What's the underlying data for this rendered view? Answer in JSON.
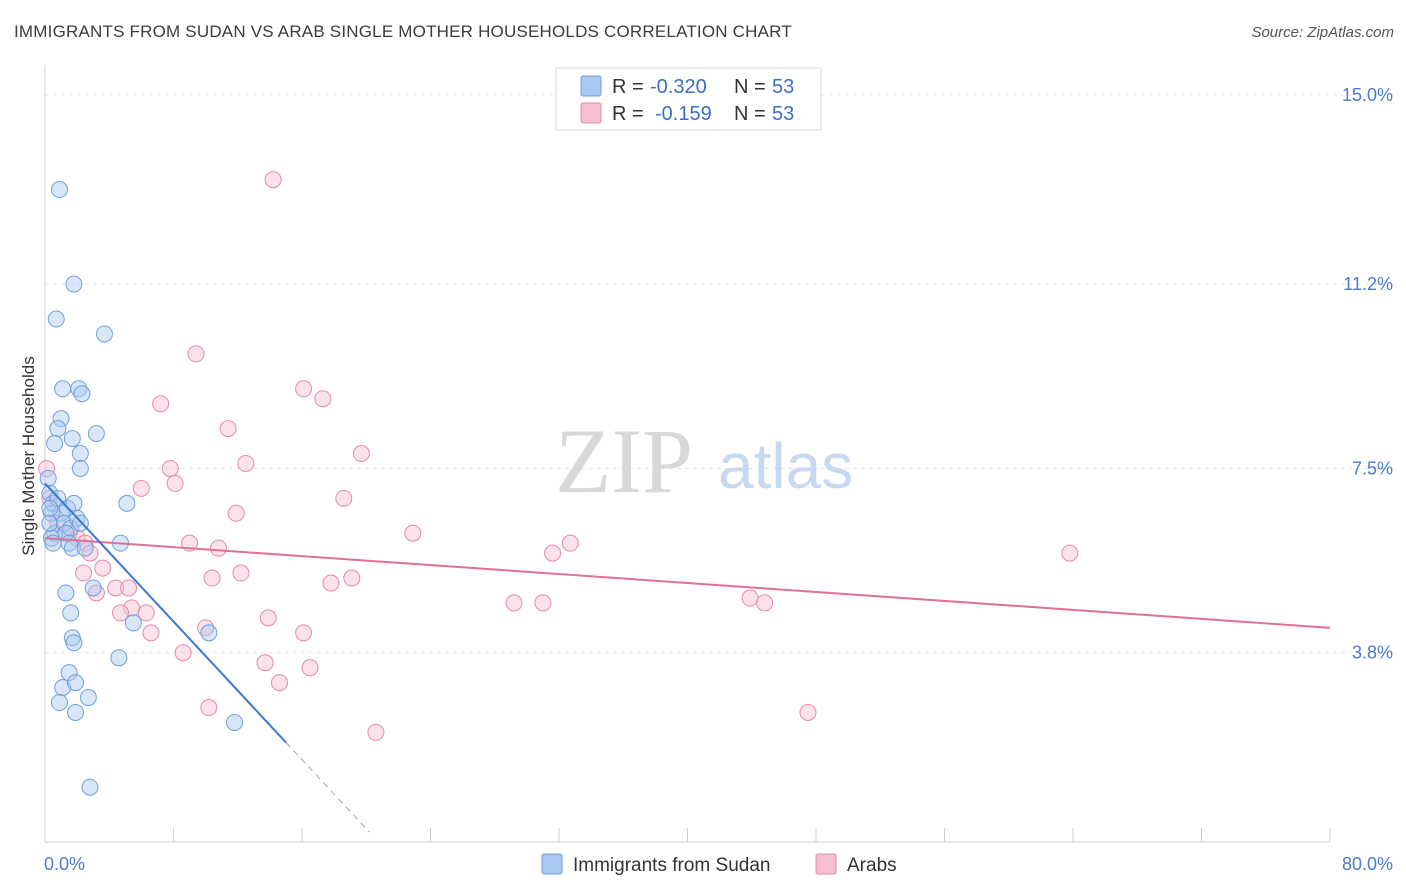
{
  "title": "IMMIGRANTS FROM SUDAN VS ARAB SINGLE MOTHER HOUSEHOLDS CORRELATION CHART",
  "source": "Source: ZipAtlas.com",
  "watermark": {
    "zip": "ZIP",
    "atlas": "atlas"
  },
  "legend": {
    "rows": [
      {
        "r_label": "R =",
        "r_value": "-0.320",
        "n_label": "N =",
        "n_value": "53"
      },
      {
        "r_label": "R =",
        "r_value": "-0.159",
        "n_label": "N =",
        "n_value": "53"
      }
    ]
  },
  "bottom_legend": [
    "Immigrants from Sudan",
    "Arabs"
  ],
  "colors": {
    "blue_fill": "#a9c8ef",
    "blue_stroke": "#6f9fdc",
    "blue_line": "#3a78d6",
    "pink_fill": "#f6bfd0",
    "pink_stroke": "#e58aa8",
    "pink_line": "#e0709a",
    "grid": "#e4e4e4",
    "axis_label": "#4a7cc7"
  },
  "chart_data": {
    "type": "scatter",
    "title": "IMMIGRANTS FROM SUDAN VS ARAB SINGLE MOTHER HOUSEHOLDS CORRELATION CHART",
    "xlabel": "",
    "ylabel": "Single Mother Households",
    "xlim": [
      0,
      80
    ],
    "ylim": [
      0,
      15.5
    ],
    "x_tick_labels": [
      "0.0%",
      "80.0%"
    ],
    "y_ticks": [
      3.8,
      7.5,
      11.2,
      15.0
    ],
    "y_tick_labels": [
      "3.8%",
      "7.5%",
      "11.2%",
      "15.0%"
    ],
    "series": [
      {
        "name": "Immigrants from Sudan",
        "trend": {
          "x": [
            0.0,
            15.0
          ],
          "y": [
            7.2,
            2.0
          ]
        },
        "trend_dashed": {
          "x": [
            15.0,
            20.2
          ],
          "y": [
            2.0,
            0.2
          ]
        },
        "points": [
          [
            0.2,
            7.3
          ],
          [
            0.3,
            7.0
          ],
          [
            0.4,
            6.6
          ],
          [
            0.5,
            6.8
          ],
          [
            0.6,
            6.2
          ],
          [
            0.4,
            6.1
          ],
          [
            0.3,
            6.4
          ],
          [
            0.8,
            6.9
          ],
          [
            1.0,
            6.6
          ],
          [
            1.2,
            6.4
          ],
          [
            1.4,
            6.7
          ],
          [
            1.6,
            6.3
          ],
          [
            1.8,
            6.8
          ],
          [
            1.3,
            6.2
          ],
          [
            1.5,
            6.0
          ],
          [
            2.0,
            6.5
          ],
          [
            1.7,
            5.9
          ],
          [
            2.2,
            6.4
          ],
          [
            2.5,
            5.9
          ],
          [
            0.9,
            13.1
          ],
          [
            1.8,
            11.2
          ],
          [
            0.7,
            10.5
          ],
          [
            3.7,
            10.2
          ],
          [
            1.1,
            9.1
          ],
          [
            2.1,
            9.1
          ],
          [
            2.3,
            9.0
          ],
          [
            1.0,
            8.5
          ],
          [
            0.8,
            8.3
          ],
          [
            3.2,
            8.2
          ],
          [
            1.7,
            8.1
          ],
          [
            0.6,
            8.0
          ],
          [
            2.2,
            7.8
          ],
          [
            2.2,
            7.5
          ],
          [
            5.1,
            6.8
          ],
          [
            4.7,
            6.0
          ],
          [
            0.5,
            6.0
          ],
          [
            3.0,
            5.1
          ],
          [
            1.3,
            5.0
          ],
          [
            1.6,
            4.6
          ],
          [
            5.5,
            4.4
          ],
          [
            1.7,
            4.1
          ],
          [
            10.2,
            4.2
          ],
          [
            1.8,
            4.0
          ],
          [
            4.6,
            3.7
          ],
          [
            1.5,
            3.4
          ],
          [
            1.1,
            3.1
          ],
          [
            1.9,
            3.2
          ],
          [
            0.9,
            2.8
          ],
          [
            2.7,
            2.9
          ],
          [
            1.9,
            2.6
          ],
          [
            11.8,
            2.4
          ],
          [
            2.8,
            1.1
          ],
          [
            0.3,
            6.7
          ]
        ]
      },
      {
        "name": "Arabs",
        "trend": {
          "x": [
            0.0,
            80.0
          ],
          "y": [
            6.1,
            4.3
          ]
        },
        "points": [
          [
            0.1,
            7.5
          ],
          [
            0.3,
            6.9
          ],
          [
            0.8,
            6.4
          ],
          [
            1.5,
            6.2
          ],
          [
            2.0,
            6.1
          ],
          [
            2.5,
            6.0
          ],
          [
            2.8,
            5.8
          ],
          [
            14.2,
            13.3
          ],
          [
            9.4,
            9.8
          ],
          [
            16.1,
            9.1
          ],
          [
            17.3,
            8.9
          ],
          [
            7.2,
            8.8
          ],
          [
            11.4,
            8.3
          ],
          [
            19.7,
            7.8
          ],
          [
            12.5,
            7.6
          ],
          [
            7.8,
            7.5
          ],
          [
            8.1,
            7.2
          ],
          [
            6.0,
            7.1
          ],
          [
            18.6,
            6.9
          ],
          [
            11.9,
            6.6
          ],
          [
            22.9,
            6.2
          ],
          [
            32.7,
            6.0
          ],
          [
            31.6,
            5.8
          ],
          [
            9.0,
            6.0
          ],
          [
            10.8,
            5.9
          ],
          [
            63.8,
            5.8
          ],
          [
            12.2,
            5.4
          ],
          [
            10.4,
            5.3
          ],
          [
            19.1,
            5.3
          ],
          [
            17.8,
            5.2
          ],
          [
            3.6,
            5.5
          ],
          [
            2.4,
            5.4
          ],
          [
            4.4,
            5.1
          ],
          [
            5.2,
            5.1
          ],
          [
            3.2,
            5.0
          ],
          [
            29.2,
            4.8
          ],
          [
            31.0,
            4.8
          ],
          [
            43.9,
            4.9
          ],
          [
            44.8,
            4.8
          ],
          [
            5.4,
            4.7
          ],
          [
            6.3,
            4.6
          ],
          [
            4.7,
            4.6
          ],
          [
            13.9,
            4.5
          ],
          [
            10.0,
            4.3
          ],
          [
            16.1,
            4.2
          ],
          [
            6.6,
            4.2
          ],
          [
            8.6,
            3.8
          ],
          [
            13.7,
            3.6
          ],
          [
            16.5,
            3.5
          ],
          [
            14.6,
            3.2
          ],
          [
            10.2,
            2.7
          ],
          [
            47.5,
            2.6
          ],
          [
            20.6,
            2.2
          ]
        ]
      }
    ]
  }
}
